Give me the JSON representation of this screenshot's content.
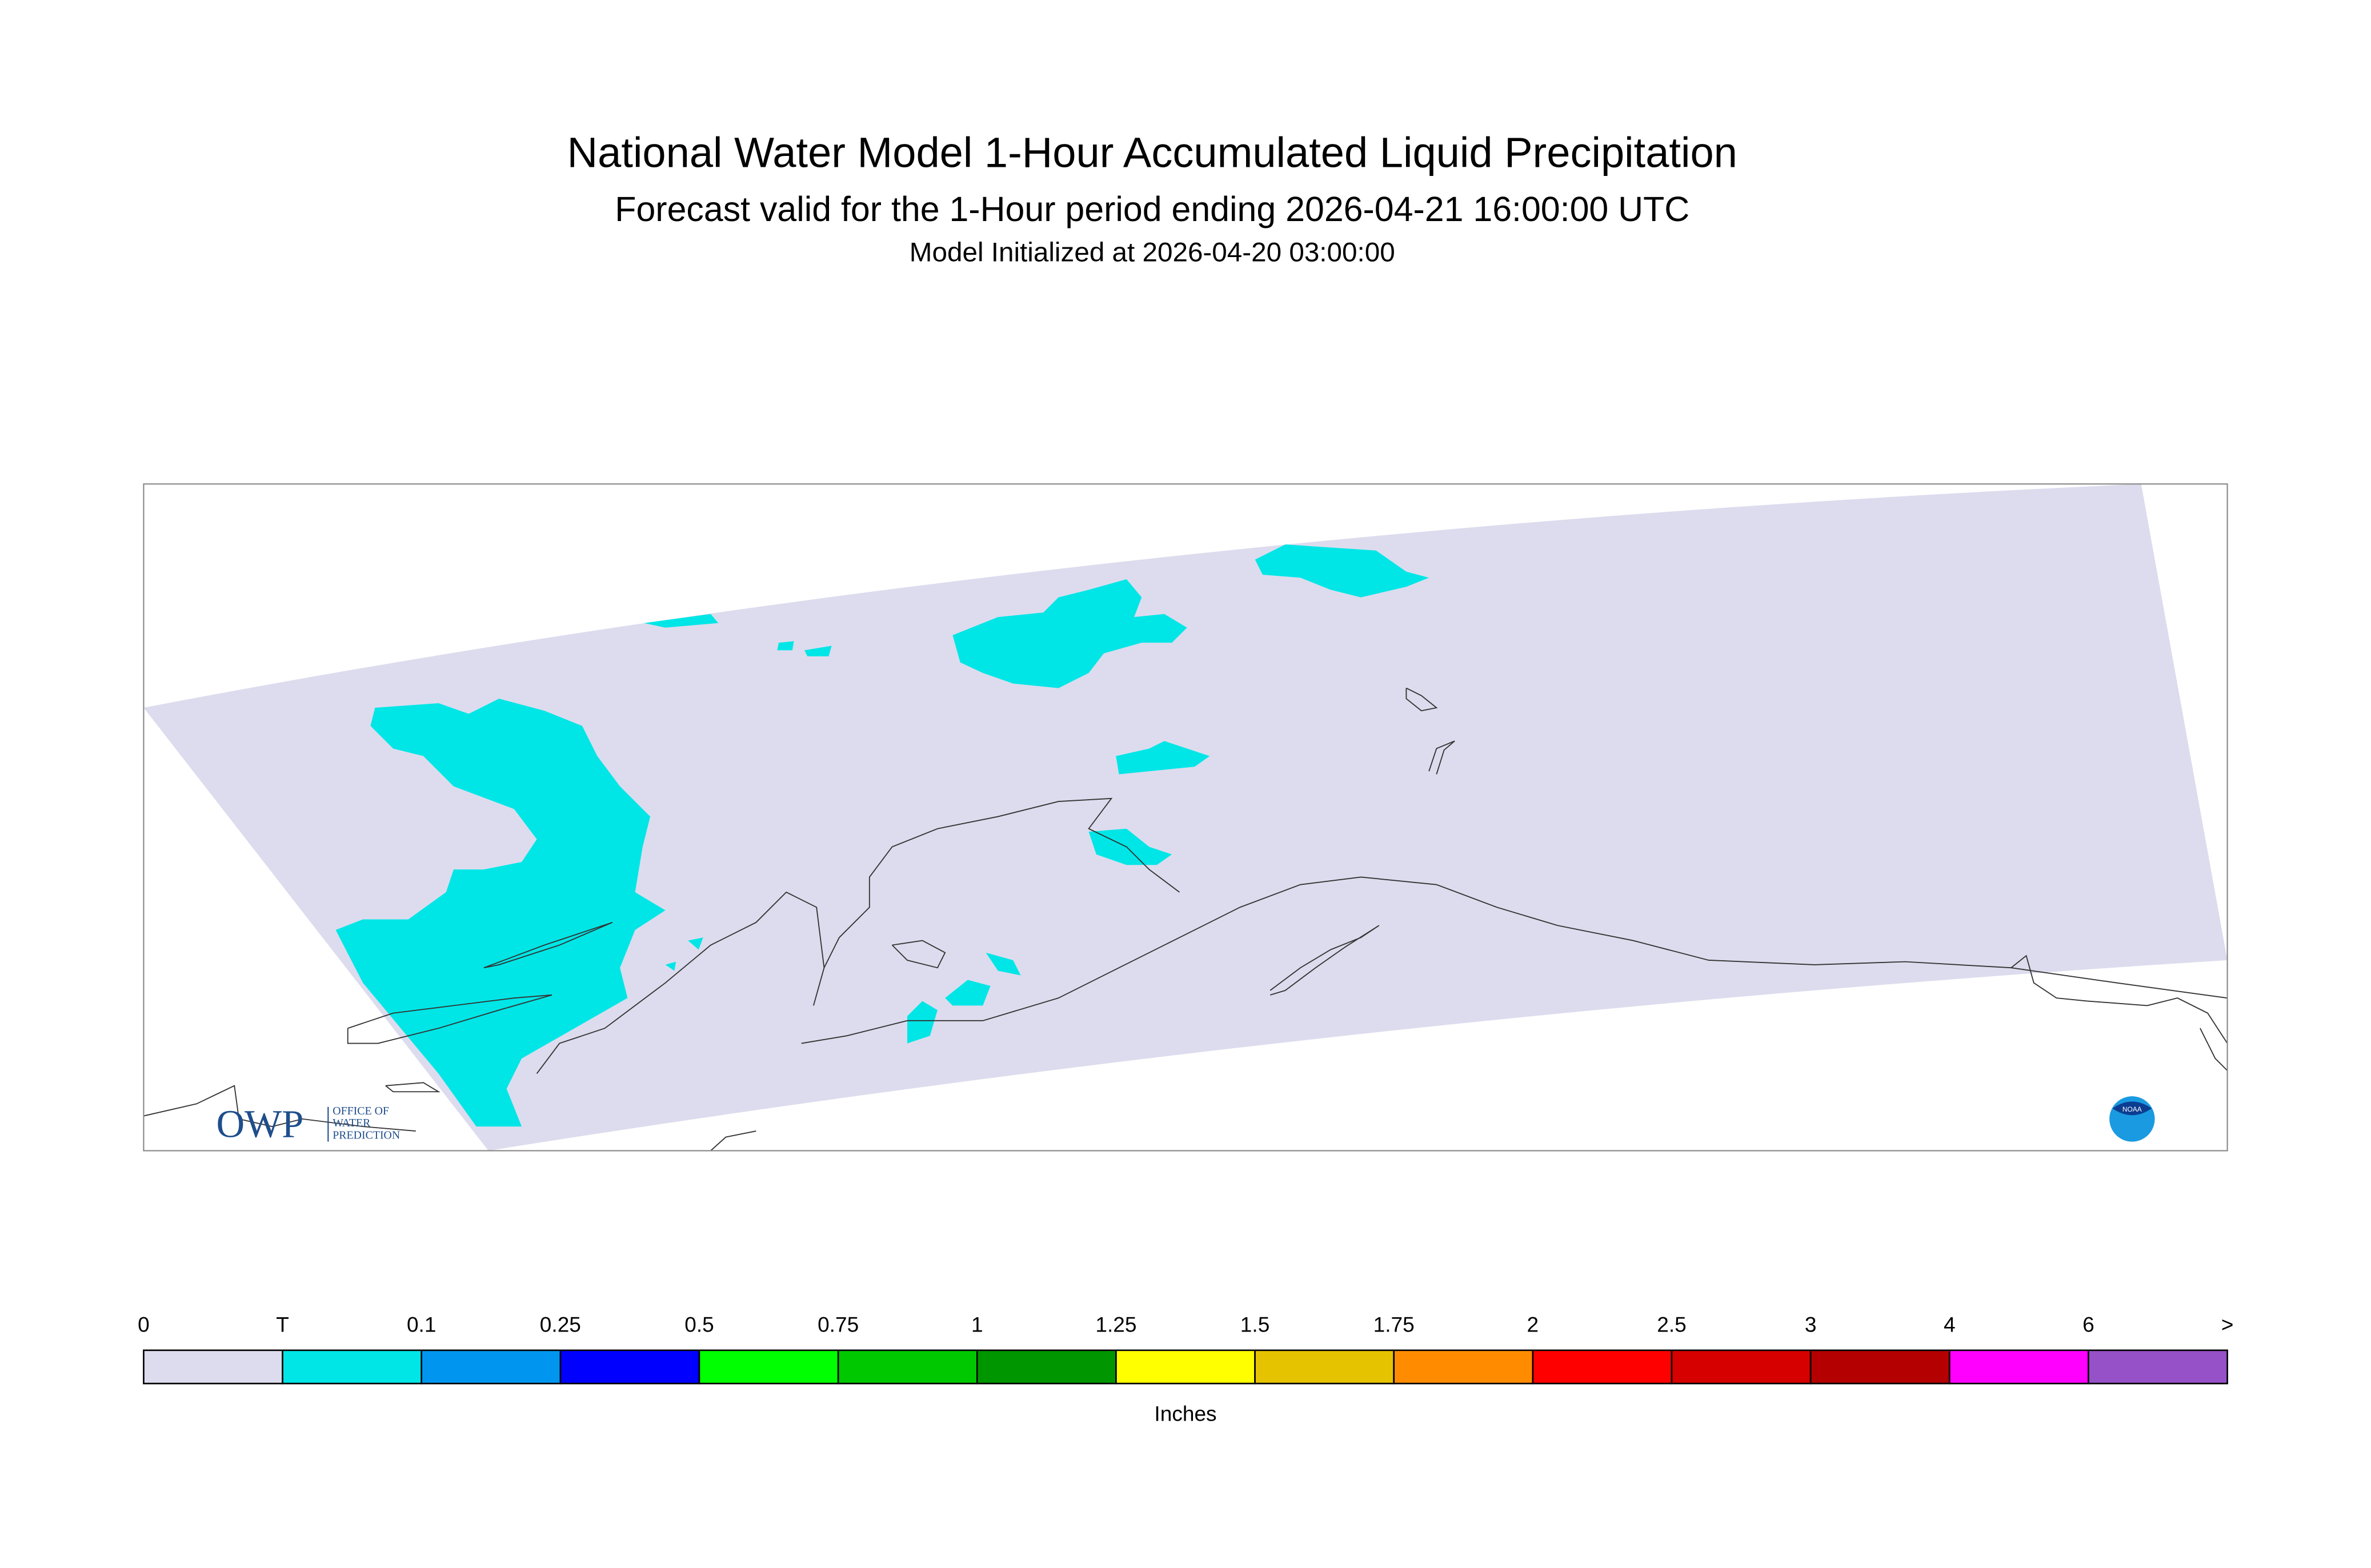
{
  "header": {
    "title": "National Water Model 1-Hour Accumulated Liquid Precipitation",
    "subtitle": "Forecast valid for the 1-Hour period ending 2026-04-21 16:00:00 UTC",
    "initialized": "Model Initialized at 2026-04-20 03:00:00"
  },
  "legend": {
    "labels": [
      "0",
      "T",
      "0.1",
      "0.25",
      "0.5",
      "0.75",
      "1",
      "1.25",
      "1.5",
      "1.75",
      "2",
      "2.5",
      "3",
      "4",
      "6",
      ">"
    ],
    "colors": [
      "#dcdcee",
      "#00e6e6",
      "#0096f0",
      "#0000ff",
      "#00ff00",
      "#00c800",
      "#009600",
      "#ffff00",
      "#e6c300",
      "#ff8c00",
      "#ff0000",
      "#d70000",
      "#b40000",
      "#ff00ff",
      "#9650c8"
    ],
    "unit": "Inches"
  },
  "logos": {
    "owp": "OWP",
    "owp_text": [
      "OFFICE OF",
      "WATER",
      "PREDICTION"
    ],
    "noaa": "NOAA"
  }
}
